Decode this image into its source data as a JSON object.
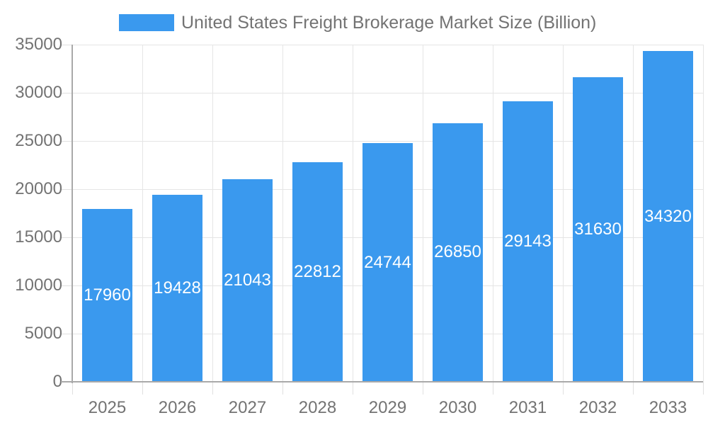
{
  "legend": {
    "label": "United States Freight Brokerage Market Size (Billion)"
  },
  "chart_data": {
    "type": "bar",
    "title": "United States Freight Brokerage Market Size (Billion)",
    "series_name": "United States Freight Brokerage Market Size (Billion)",
    "categories": [
      "2025",
      "2026",
      "2027",
      "2028",
      "2029",
      "2030",
      "2031",
      "2032",
      "2033"
    ],
    "values": [
      17960,
      19428,
      21043,
      22812,
      24744,
      26850,
      29143,
      31630,
      34320
    ],
    "xlabel": "",
    "ylabel": "",
    "ylim": [
      0,
      35000
    ],
    "yticks": [
      0,
      5000,
      10000,
      15000,
      20000,
      25000,
      30000,
      35000
    ],
    "grid": true,
    "legend_position": "top",
    "value_labels": "inside-center",
    "colors": {
      "bar": "#3A99EE",
      "value_label_text": "#FFFFFF",
      "axis_line": "#A9A9A9",
      "gridline": "#E5E5E5",
      "tick": "#E0E0E0",
      "text": "#737373",
      "background": "#FFFFFF"
    }
  }
}
